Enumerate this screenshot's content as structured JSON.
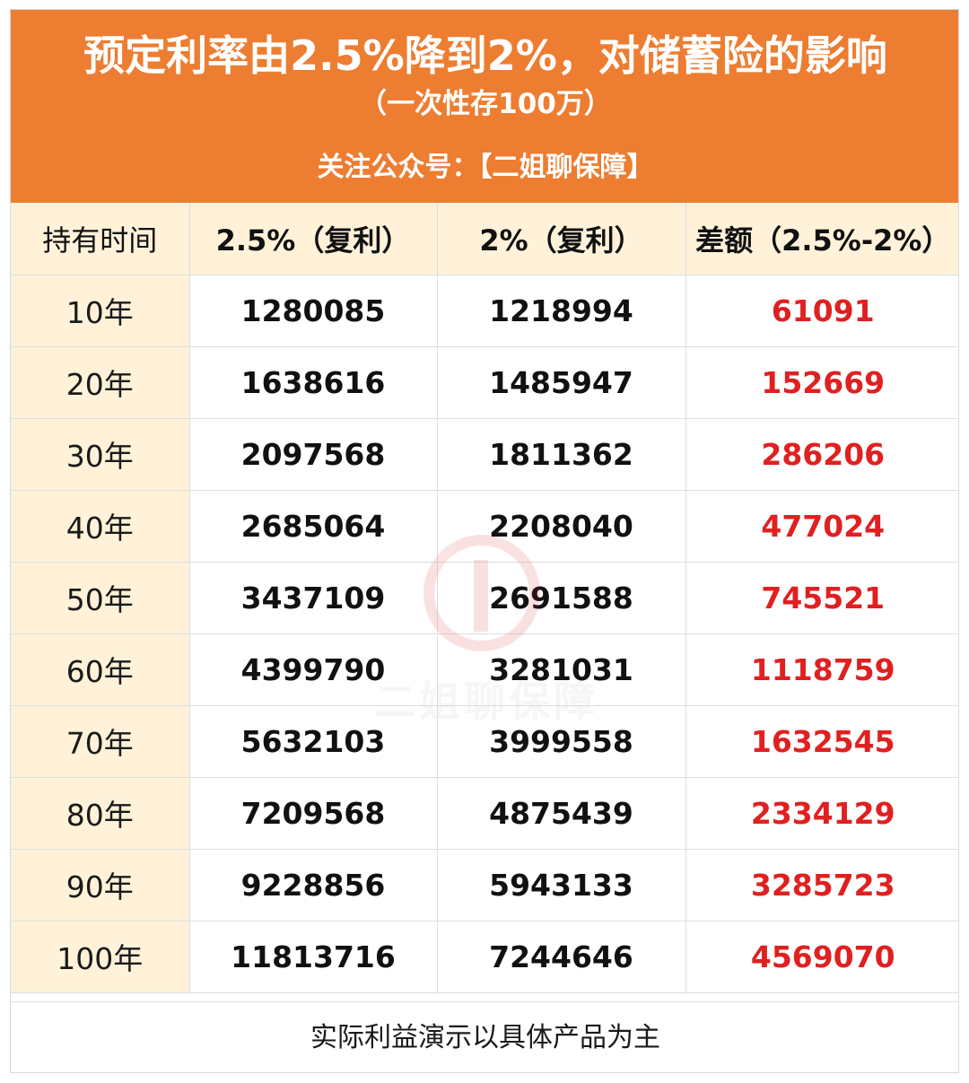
{
  "header": {
    "title": "预定利率由2.5%降到2%，对储蓄险的影响",
    "subtitle": "（一次性存100万）",
    "follow": "关注公众号：【二姐聊保障】"
  },
  "table": {
    "columns": [
      "持有时间",
      "2.5%（复利）",
      "2%（复利）",
      "差额（2.5%-2%）"
    ],
    "rows": [
      {
        "period": "10年",
        "rate_25": "1280085",
        "rate_2": "1218994",
        "diff": "61091"
      },
      {
        "period": "20年",
        "rate_25": "1638616",
        "rate_2": "1485947",
        "diff": "152669"
      },
      {
        "period": "30年",
        "rate_25": "2097568",
        "rate_2": "1811362",
        "diff": "286206"
      },
      {
        "period": "40年",
        "rate_25": "2685064",
        "rate_2": "2208040",
        "diff": "477024"
      },
      {
        "period": "50年",
        "rate_25": "3437109",
        "rate_2": "2691588",
        "diff": "745521"
      },
      {
        "period": "60年",
        "rate_25": "4399790",
        "rate_2": "3281031",
        "diff": "1118759"
      },
      {
        "period": "70年",
        "rate_25": "5632103",
        "rate_2": "3999558",
        "diff": "1632545"
      },
      {
        "period": "80年",
        "rate_25": "7209568",
        "rate_2": "4875439",
        "diff": "2334129"
      },
      {
        "period": "90年",
        "rate_25": "9228856",
        "rate_2": "5943133",
        "diff": "3285723"
      },
      {
        "period": "100年",
        "rate_25": "11813716",
        "rate_2": "7244646",
        "diff": "4569070"
      }
    ]
  },
  "footer": {
    "note": "实际利益演示以具体产品为主"
  },
  "watermark": {
    "text": "二姐聊保障"
  },
  "colors": {
    "header_bg": "#ed7d31",
    "label_bg": "#fff2d9",
    "diff_text": "#e02020"
  },
  "chart_data": {
    "type": "table",
    "title": "预定利率由2.5%降到2%，对储蓄险的影响",
    "subtitle": "（一次性存100万）",
    "columns": [
      "持有时间",
      "2.5%（复利）",
      "2%（复利）",
      "差额（2.5%-2%）"
    ],
    "categories": [
      "10年",
      "20年",
      "30年",
      "40年",
      "50年",
      "60年",
      "70年",
      "80年",
      "90年",
      "100年"
    ],
    "series": [
      {
        "name": "2.5%（复利）",
        "values": [
          1280085,
          1638616,
          2097568,
          2685064,
          3437109,
          4399790,
          5632103,
          7209568,
          9228856,
          11813716
        ]
      },
      {
        "name": "2%（复利）",
        "values": [
          1218994,
          1485947,
          1811362,
          2208040,
          2691588,
          3281031,
          3999558,
          4875439,
          5943133,
          7244646
        ]
      },
      {
        "name": "差额（2.5%-2%）",
        "values": [
          61091,
          152669,
          286206,
          477024,
          745521,
          1118759,
          1632545,
          2334129,
          3285723,
          4569070
        ]
      }
    ]
  }
}
